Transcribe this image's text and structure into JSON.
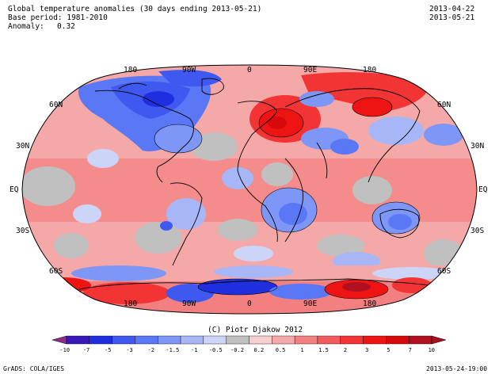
{
  "header": {
    "title": "Global temperature anomalies (30 days ending 2013-05-21)",
    "base_period": "Base period: 1981-2010",
    "anomaly_label": "Anomaly:",
    "anomaly_value": "0.32",
    "date_start": "2013-04-22",
    "date_end": "2013-05-21"
  },
  "map": {
    "lon_labels_top": [
      "180",
      "90W",
      "0",
      "90E",
      "180"
    ],
    "lon_labels_bottom": [
      "180",
      "90W",
      "0",
      "90E",
      "180"
    ],
    "lat_labels_left": [
      "60N",
      "30N",
      "EQ",
      "30S",
      "60S"
    ],
    "lat_labels_right": [
      "60N",
      "30N",
      "EQ",
      "30S",
      "60S"
    ]
  },
  "footer": {
    "copyright": "(C) Piotr Djakow 2012",
    "grads": "GrADS: COLA/IGES",
    "timestamp": "2013-05-24-19:00"
  },
  "colorbar": {
    "labels": [
      "-10",
      "-7",
      "-5",
      "-3",
      "-2",
      "-1.5",
      "-1",
      "-0.5",
      "-0.2",
      "0.2",
      "0.5",
      "1",
      "1.5",
      "2",
      "3",
      "5",
      "7",
      "10"
    ],
    "colors": [
      "#8a2e8a",
      "#3a18b8",
      "#1f2fe0",
      "#3f58f0",
      "#5a78f5",
      "#7e96f5",
      "#a6b6f7",
      "#ccd4f7",
      "#c0c0c0",
      "#f7cfcf",
      "#f5a8a8",
      "#f38080",
      "#f25c5c",
      "#f23434",
      "#ee1414",
      "#d60a0a",
      "#b01020",
      "#a81020"
    ]
  }
}
